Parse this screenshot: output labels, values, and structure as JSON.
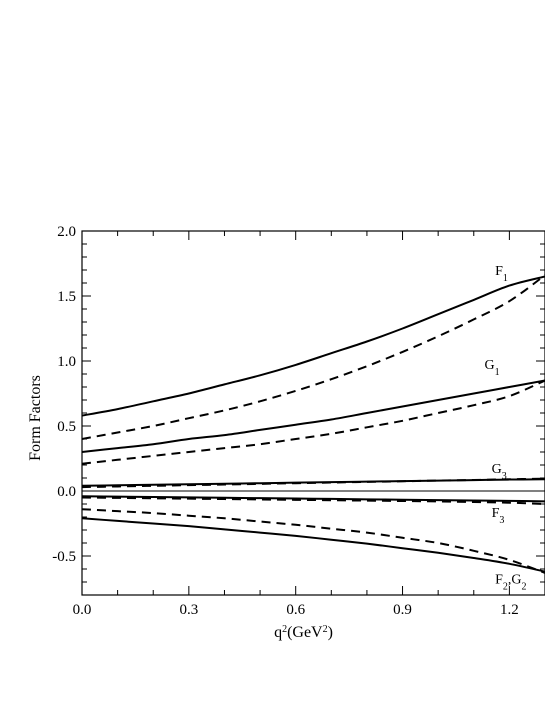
{
  "chart_data": {
    "type": "line",
    "title": "",
    "xlabel": "q",
    "xlabel_sup": "2",
    "xlabel_unit": "(GeV",
    "xlabel_unit_sup": "2",
    "xlabel_close": ")",
    "ylabel": "Form Factors",
    "xlim": [
      0.0,
      1.3
    ],
    "ylim": [
      -0.8,
      2.0
    ],
    "x_ticks": [
      {
        "value": 0.0,
        "label": "0.0"
      },
      {
        "value": 0.3,
        "label": "0.3"
      },
      {
        "value": 0.6,
        "label": "0.6"
      },
      {
        "value": 0.9,
        "label": "0.9"
      },
      {
        "value": 1.2,
        "label": "1.2"
      }
    ],
    "y_ticks": [
      {
        "value": 2.0,
        "label": "2.0"
      },
      {
        "value": 1.5,
        "label": "1.5"
      },
      {
        "value": 1.0,
        "label": "1.0"
      },
      {
        "value": 0.5,
        "label": "0.5"
      },
      {
        "value": 0.0,
        "label": "0.0"
      },
      {
        "value": -0.5,
        "label": "-0.5"
      }
    ],
    "grid": false,
    "zero_line": true,
    "x": [
      0.0,
      0.1,
      0.2,
      0.3,
      0.4,
      0.5,
      0.6,
      0.7,
      0.8,
      0.9,
      1.0,
      1.1,
      1.2,
      1.3
    ],
    "series": [
      {
        "style": "solid",
        "values": [
          0.58,
          0.63,
          0.69,
          0.75,
          0.82,
          0.89,
          0.97,
          1.06,
          1.15,
          1.25,
          1.36,
          1.47,
          1.58,
          1.65
        ]
      },
      {
        "style": "dashed",
        "values": [
          0.4,
          0.45,
          0.5,
          0.56,
          0.62,
          0.69,
          0.77,
          0.86,
          0.96,
          1.07,
          1.19,
          1.32,
          1.46,
          1.66
        ]
      },
      {
        "style": "solid",
        "values": [
          0.3,
          0.33,
          0.36,
          0.4,
          0.43,
          0.47,
          0.51,
          0.55,
          0.6,
          0.65,
          0.7,
          0.75,
          0.8,
          0.85
        ]
      },
      {
        "style": "dashed",
        "values": [
          0.21,
          0.24,
          0.27,
          0.3,
          0.33,
          0.36,
          0.4,
          0.44,
          0.49,
          0.54,
          0.6,
          0.66,
          0.73,
          0.85
        ]
      },
      {
        "style": "solid",
        "values": [
          0.04,
          0.044,
          0.048,
          0.052,
          0.056,
          0.06,
          0.064,
          0.068,
          0.072,
          0.076,
          0.08,
          0.084,
          0.088,
          0.09
        ]
      },
      {
        "style": "dashed",
        "values": [
          0.03,
          0.035,
          0.04,
          0.045,
          0.05,
          0.055,
          0.06,
          0.065,
          0.07,
          0.075,
          0.08,
          0.085,
          0.09,
          0.095
        ]
      },
      {
        "style": "solid",
        "values": [
          -0.04,
          -0.043,
          -0.046,
          -0.049,
          -0.052,
          -0.055,
          -0.058,
          -0.061,
          -0.064,
          -0.067,
          -0.07,
          -0.073,
          -0.076,
          -0.08
        ]
      },
      {
        "style": "dashed",
        "values": [
          -0.05,
          -0.053,
          -0.056,
          -0.059,
          -0.062,
          -0.065,
          -0.068,
          -0.071,
          -0.074,
          -0.077,
          -0.08,
          -0.085,
          -0.09,
          -0.1
        ]
      },
      {
        "style": "solid",
        "values": [
          -0.21,
          -0.23,
          -0.25,
          -0.27,
          -0.295,
          -0.32,
          -0.345,
          -0.375,
          -0.405,
          -0.44,
          -0.475,
          -0.515,
          -0.56,
          -0.62
        ]
      },
      {
        "style": "dashed",
        "values": [
          -0.14,
          -0.155,
          -0.17,
          -0.19,
          -0.21,
          -0.235,
          -0.26,
          -0.29,
          -0.32,
          -0.36,
          -0.4,
          -0.46,
          -0.53,
          -0.63
        ]
      }
    ],
    "annotations": [
      {
        "name": "F1",
        "main": "F",
        "sub": "1",
        "x": 1.16,
        "y": 1.66
      },
      {
        "name": "G1",
        "main": "G",
        "sub": "1",
        "x": 1.13,
        "y": 0.94
      },
      {
        "name": "G3",
        "main": "G",
        "sub": "3",
        "x": 1.15,
        "y": 0.14
      },
      {
        "name": "F3",
        "main": "F",
        "sub": "3",
        "x": 1.15,
        "y": -0.2
      },
      {
        "name": "F2G2",
        "main": "F",
        "sub": "2",
        "main2": ",G",
        "sub2": "2",
        "x": 1.16,
        "y": -0.71
      }
    ]
  }
}
